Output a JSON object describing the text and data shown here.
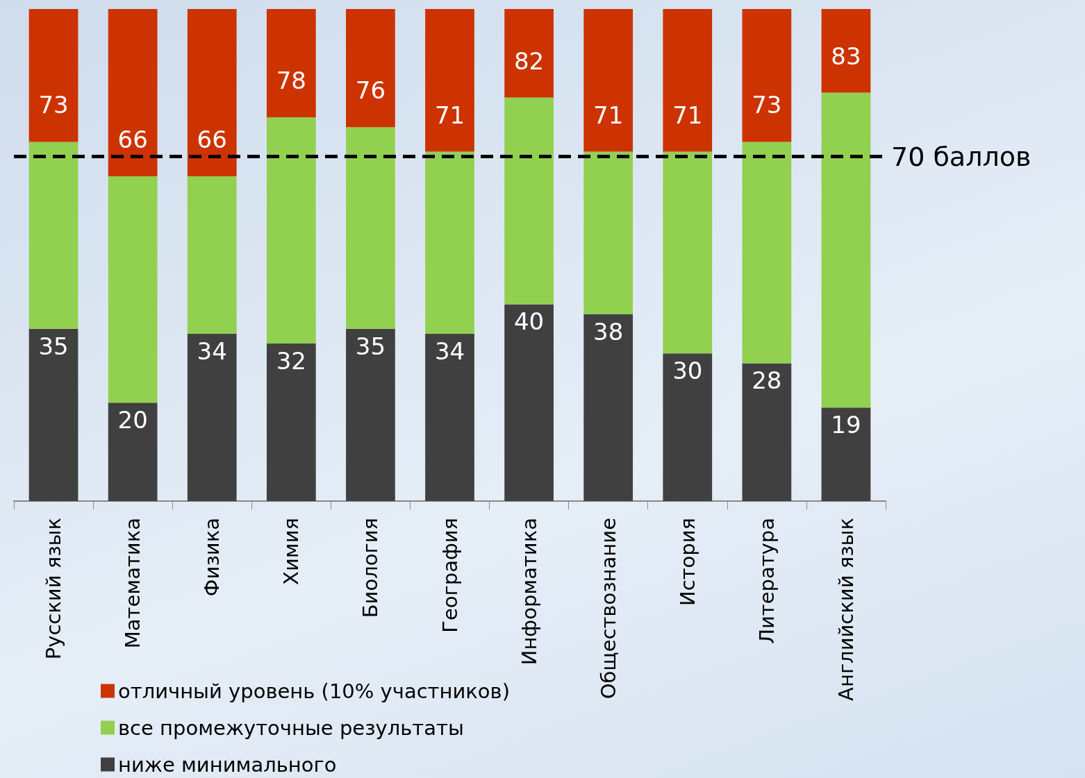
{
  "chart_data": {
    "type": "bar",
    "stacked": true,
    "categories": [
      "Русский язык",
      "Математика",
      "Физика",
      "Химия",
      "Биология",
      "География",
      "Информатика",
      "Обществознание",
      "История",
      "Литература",
      "Английский язык"
    ],
    "series": [
      {
        "name": "ниже минимального",
        "color": "#404040",
        "values": [
          35,
          20,
          34,
          32,
          35,
          34,
          40,
          38,
          30,
          28,
          19
        ],
        "value_labels": [
          "35",
          "20",
          "34",
          "32",
          "35",
          "34",
          "40",
          "38",
          "30",
          "28",
          "19"
        ]
      },
      {
        "name": "все промежуточные результаты",
        "color": "#92d050",
        "values": [
          38,
          46,
          32,
          46,
          41,
          37,
          42,
          33,
          41,
          45,
          64
        ]
      },
      {
        "name": "отличный уровень (10% участников)",
        "color": "#cc3300",
        "values": [
          27,
          34,
          34,
          22,
          24,
          29,
          18,
          29,
          29,
          27,
          17
        ]
      }
    ],
    "annotations": [
      {
        "text": "73",
        "x": "Русский язык",
        "y": 73
      },
      {
        "text": "66",
        "x": "Математика",
        "y": 66
      },
      {
        "text": "66",
        "x": "Физика",
        "y": 66
      },
      {
        "text": "78",
        "x": "Химия",
        "y": 78
      },
      {
        "text": "76",
        "x": "Биология",
        "y": 76
      },
      {
        "text": "71",
        "x": "География",
        "y": 71
      },
      {
        "text": "82",
        "x": "Информатика",
        "y": 82
      },
      {
        "text": "71",
        "x": "Обществознание",
        "y": 71
      },
      {
        "text": "71",
        "x": "История",
        "y": 71
      },
      {
        "text": "73",
        "x": "Литература",
        "y": 73
      },
      {
        "text": "83",
        "x": "Английский язык",
        "y": 83
      }
    ],
    "ylim": [
      0,
      100
    ],
    "tick_labels": "x",
    "legend": "bottom left",
    "ref_lines": [
      {
        "axis": "y",
        "value": 70,
        "label": "70 баллов",
        "color": "#000000",
        "line_style": "dashed"
      }
    ]
  }
}
